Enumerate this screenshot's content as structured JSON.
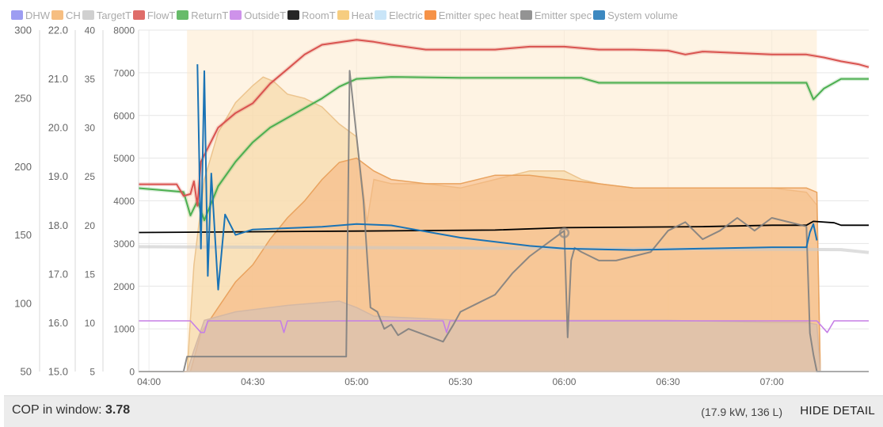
{
  "chart_data": {
    "type": "line",
    "legend_placement": "top",
    "legend": [
      {
        "name": "DHW",
        "color": "#8c8cf0"
      },
      {
        "name": "CH",
        "color": "#f5b36b"
      },
      {
        "name": "TargetT",
        "color": "#c8c8c8"
      },
      {
        "name": "FlowT",
        "color": "#d9534f"
      },
      {
        "name": "ReturnT",
        "color": "#4caf50"
      },
      {
        "name": "OutsideT",
        "color": "#c57fe6"
      },
      {
        "name": "RoomT",
        "color": "#000000"
      },
      {
        "name": "Heat",
        "color": "#f4c46a"
      },
      {
        "name": "Electric",
        "color": "#bfe0f7"
      },
      {
        "name": "Emitter spec heat",
        "color": "#f57f27"
      },
      {
        "name": "Emitter spec",
        "color": "#808080"
      },
      {
        "name": "System volume",
        "color": "#1a73b5"
      }
    ],
    "x_ticks": [
      "04:00",
      "04:30",
      "05:00",
      "05:30",
      "06:00",
      "06:30",
      "07:00"
    ],
    "x_range": [
      "03:57",
      "07:28"
    ],
    "axes": {
      "volume": {
        "ticks": [
          50,
          100,
          150,
          200,
          250,
          300
        ],
        "range": [
          50,
          300
        ]
      },
      "outside": {
        "ticks": [
          "15.0",
          "16.0",
          "17.0",
          "18.0",
          "19.0",
          "20.0",
          "21.0",
          "22.0"
        ],
        "range": [
          15,
          22
        ]
      },
      "temp": {
        "ticks": [
          5,
          10,
          15,
          20,
          25,
          30,
          35,
          40
        ],
        "range": [
          5,
          40
        ]
      },
      "power": {
        "ticks": [
          0,
          1000,
          2000,
          3000,
          4000,
          5000,
          6000,
          7000,
          8000
        ],
        "range": [
          0,
          8000
        ]
      }
    },
    "ch_period": [
      "04:11",
      "07:13"
    ],
    "series": [
      {
        "name": "Emitter spec heat",
        "axis": "power",
        "style": "area",
        "x": [
          "03:57",
          "04:12",
          "04:15",
          "04:20",
          "04:25",
          "04:30",
          "04:35",
          "04:40",
          "04:45",
          "04:50",
          "04:55",
          "05:00",
          "05:05",
          "05:10",
          "05:20",
          "05:30",
          "05:40",
          "05:50",
          "06:00",
          "06:10",
          "06:20",
          "06:30",
          "06:40",
          "06:50",
          "07:00",
          "07:10",
          "07:13",
          "07:14"
        ],
        "y": [
          0,
          0,
          900,
          1500,
          2100,
          2500,
          3100,
          3600,
          4000,
          4500,
          4900,
          5000,
          4700,
          4500,
          4400,
          4400,
          4600,
          4600,
          4500,
          4400,
          4300,
          4300,
          4300,
          4300,
          4300,
          4300,
          4200,
          0
        ]
      },
      {
        "name": "Heat",
        "axis": "power",
        "style": "area",
        "x": [
          "03:57",
          "04:11",
          "04:13",
          "04:16",
          "04:20",
          "04:25",
          "04:30",
          "04:33",
          "04:36",
          "04:40",
          "04:45",
          "04:50",
          "04:55",
          "05:00",
          "05:03",
          "05:05",
          "05:10",
          "05:20",
          "05:30",
          "05:40",
          "05:50",
          "06:00",
          "06:05",
          "06:10",
          "06:20",
          "06:30",
          "06:40",
          "06:50",
          "07:00",
          "07:10",
          "07:13",
          "07:14"
        ],
        "y": [
          0,
          0,
          2500,
          4500,
          5600,
          6300,
          6700,
          6900,
          6800,
          6500,
          6400,
          6200,
          5800,
          5500,
          3500,
          4500,
          4400,
          4400,
          4300,
          4500,
          4700,
          4700,
          4500,
          4400,
          4300,
          4300,
          4300,
          4300,
          4300,
          4200,
          3900,
          0
        ]
      },
      {
        "name": "Electric",
        "axis": "power",
        "style": "area",
        "x": [
          "03:57",
          "04:11",
          "04:13",
          "04:16",
          "04:25",
          "04:40",
          "04:55",
          "05:00",
          "05:05",
          "05:30",
          "06:00",
          "06:30",
          "07:00",
          "07:10",
          "07:13",
          "07:14"
        ],
        "y": [
          0,
          0,
          500,
          1200,
          1400,
          1550,
          1650,
          1500,
          1300,
          1200,
          1200,
          1200,
          1150,
          1150,
          1100,
          0
        ]
      },
      {
        "name": "TargetT",
        "axis": "temp",
        "style": "line",
        "x": [
          "03:57",
          "07:20",
          "07:28"
        ],
        "y": [
          17.8,
          17.5,
          17.2
        ]
      },
      {
        "name": "FlowT",
        "axis": "temp",
        "style": "line",
        "x": [
          "03:57",
          "04:08",
          "04:10",
          "04:12",
          "04:13",
          "04:14",
          "04:15",
          "04:20",
          "04:25",
          "04:30",
          "04:35",
          "04:40",
          "04:45",
          "04:50",
          "05:00",
          "05:05",
          "05:10",
          "05:20",
          "05:30",
          "05:40",
          "05:50",
          "06:00",
          "06:10",
          "06:20",
          "06:30",
          "06:35",
          "06:40",
          "07:00",
          "07:10",
          "07:15",
          "07:20",
          "07:25",
          "07:28"
        ],
        "y": [
          24.2,
          24.2,
          23.0,
          23.2,
          24.5,
          22.0,
          26.5,
          30.0,
          31.5,
          32.5,
          34.5,
          36.0,
          37.5,
          38.5,
          39.0,
          38.8,
          38.5,
          38.0,
          38.0,
          38.0,
          38.3,
          38.3,
          38.0,
          38.0,
          37.9,
          37.5,
          37.8,
          37.5,
          37.5,
          37.2,
          36.8,
          36.5,
          36.2
        ]
      },
      {
        "name": "ReturnT",
        "axis": "temp",
        "style": "line",
        "x": [
          "03:57",
          "04:10",
          "04:12",
          "04:14",
          "04:16",
          "04:20",
          "04:25",
          "04:30",
          "04:35",
          "04:40",
          "04:45",
          "04:50",
          "04:55",
          "05:00",
          "05:10",
          "05:30",
          "05:50",
          "06:05",
          "06:10",
          "06:30",
          "07:00",
          "07:10",
          "07:12",
          "07:15",
          "07:20",
          "07:28"
        ],
        "y": [
          23.8,
          23.4,
          21.0,
          22.5,
          20.5,
          24.0,
          26.5,
          28.5,
          30.0,
          31.0,
          32.0,
          33.0,
          34.2,
          35.0,
          35.2,
          35.1,
          35.1,
          35.1,
          34.6,
          34.6,
          34.6,
          34.6,
          32.9,
          34.0,
          35.0,
          35.0
        ]
      },
      {
        "name": "RoomT",
        "axis": "outside",
        "style": "line",
        "x": [
          "03:57",
          "05:00",
          "05:40",
          "06:00",
          "06:40",
          "07:00",
          "07:10",
          "07:12",
          "07:18",
          "07:20",
          "07:28"
        ],
        "y": [
          17.85,
          17.88,
          17.9,
          17.95,
          17.97,
          18.0,
          18.0,
          18.08,
          18.05,
          18.0,
          18.0
        ]
      },
      {
        "name": "OutsideT",
        "axis": "temp",
        "style": "line",
        "x": [
          "03:57",
          "04:12",
          "04:15",
          "04:16",
          "04:17",
          "04:20",
          "04:25",
          "04:38",
          "04:39",
          "04:40",
          "05:00",
          "05:25",
          "05:26",
          "05:27",
          "05:30",
          "06:00",
          "07:00",
          "07:13",
          "07:16",
          "07:18",
          "07:28"
        ],
        "y": [
          10.2,
          10.2,
          9.0,
          9.0,
          10.2,
          10.2,
          10.2,
          10.2,
          9.0,
          10.2,
          10.2,
          10.2,
          9.0,
          10.2,
          10.2,
          10.2,
          10.2,
          10.2,
          9.0,
          10.2,
          10.2
        ]
      },
      {
        "name": "Emitter spec",
        "axis": "power",
        "style": "line",
        "x": [
          "03:57",
          "04:10",
          "04:11",
          "04:20",
          "04:30",
          "04:40",
          "04:50",
          "04:57",
          "04:58",
          "05:00",
          "05:02",
          "05:04",
          "05:06",
          "05:08",
          "05:10",
          "05:12",
          "05:15",
          "05:20",
          "05:25",
          "05:28",
          "05:30",
          "05:35",
          "05:40",
          "05:45",
          "05:50",
          "05:55",
          "06:00",
          "06:01",
          "06:02",
          "06:03",
          "06:05",
          "06:10",
          "06:15",
          "06:20",
          "06:25",
          "06:30",
          "06:35",
          "06:40",
          "06:45",
          "06:50",
          "06:55",
          "07:00",
          "07:05",
          "07:10",
          "07:11",
          "07:12",
          "07:13",
          "07:28"
        ],
        "y": [
          0,
          0,
          350,
          350,
          350,
          350,
          350,
          350,
          7050,
          5500,
          4000,
          1500,
          1400,
          1000,
          1100,
          850,
          1000,
          850,
          700,
          1100,
          1400,
          1600,
          1800,
          2300,
          2700,
          3000,
          3300,
          800,
          2600,
          2900,
          2800,
          2600,
          2600,
          2700,
          2800,
          3300,
          3500,
          3100,
          3300,
          3600,
          3300,
          3600,
          3500,
          3400,
          900,
          400,
          0,
          0
        ]
      },
      {
        "name": "System volume",
        "axis": "volume",
        "style": "line",
        "x": [
          "03:57",
          "04:13",
          "04:14",
          "04:15",
          "04:16",
          "04:17",
          "04:18",
          "04:20",
          "04:22",
          "04:25",
          "04:30",
          "04:40",
          "04:50",
          "05:00",
          "05:10",
          "05:30",
          "05:50",
          "06:00",
          "06:20",
          "06:40",
          "07:00",
          "07:10",
          "07:11",
          "07:12",
          "07:13",
          "07:14"
        ],
        "y": [
          null,
          null,
          275,
          140,
          270,
          120,
          195,
          110,
          165,
          150,
          154,
          155,
          156,
          158,
          157,
          148,
          142,
          140,
          139,
          140,
          141,
          141,
          152,
          158,
          146,
          null
        ]
      }
    ],
    "marker": {
      "x": "06:00",
      "y_power": 3250
    }
  },
  "footer": {
    "cop_label": "COP in window:",
    "cop_value": "3.78",
    "detail": "(17.9 kW, 136 L)",
    "toggle_label": "HIDE DETAIL"
  }
}
